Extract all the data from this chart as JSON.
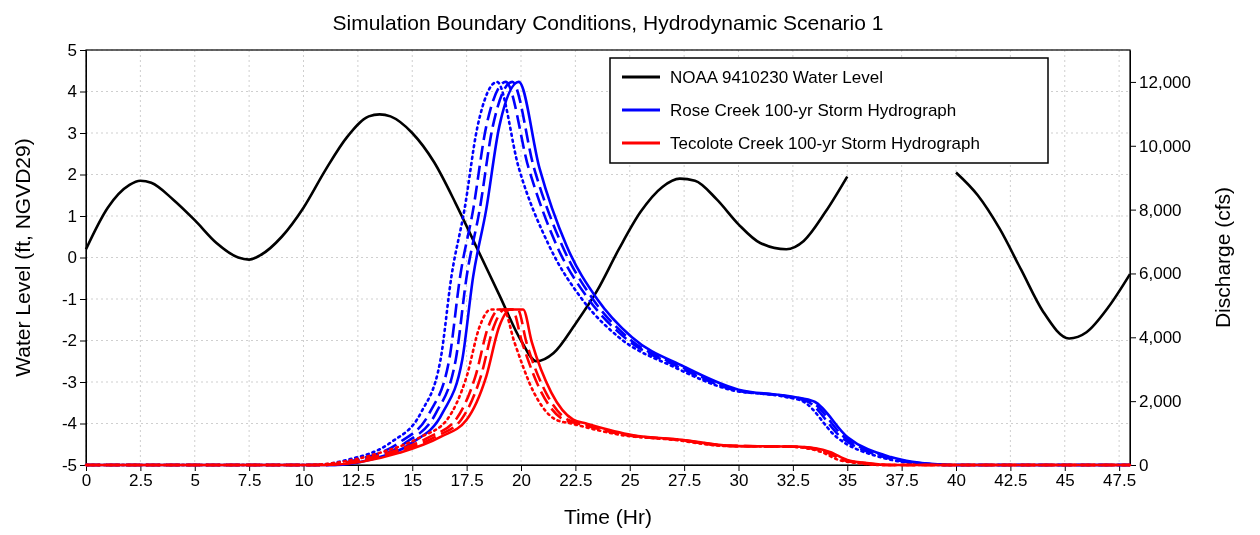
{
  "chart_data": {
    "type": "line",
    "title": "Simulation Boundary Conditions, Hydrodynamic Scenario 1",
    "xlabel": "Time (Hr)",
    "ylabel": "Water Level (ft, NGVD29)",
    "y2label": "Discharge (cfs)",
    "xlim": [
      0,
      48
    ],
    "xticks": [
      0,
      {
        "value": 2.5,
        "label": "2.5"
      },
      5,
      {
        "value": 7.5,
        "label": "7.5"
      },
      10,
      {
        "value": 12.5,
        "label": "12.5"
      },
      15,
      {
        "value": 17.5,
        "label": "17.5"
      },
      20,
      {
        "value": 22.5,
        "label": "22.5"
      },
      25,
      {
        "value": 27.5,
        "label": "27.5"
      },
      30,
      {
        "value": 32.5,
        "label": "32.5"
      },
      35,
      {
        "value": 37.5,
        "label": "37.5"
      },
      40,
      {
        "value": 42.5,
        "label": "42.5"
      },
      45,
      {
        "value": 47.5,
        "label": "47.5"
      }
    ],
    "ylim": [
      -5,
      5
    ],
    "yticks": [
      -5,
      -4,
      -3,
      -2,
      -1,
      0,
      1,
      2,
      3,
      4,
      5
    ],
    "y2lim": [
      0,
      13000
    ],
    "y2ticks": [
      0,
      {
        "value": 2000,
        "label": "2,000"
      },
      {
        "value": 4000,
        "label": "4,000"
      },
      {
        "value": 6000,
        "label": "6,000"
      },
      {
        "value": 8000,
        "label": "8,000"
      },
      {
        "value": 10000,
        "label": "10,000"
      },
      {
        "value": 12000,
        "label": "12,000"
      }
    ],
    "grid": true,
    "legend": "top right",
    "series": [
      {
        "name": "NOAA 9410230 Water Level",
        "color": "#000000",
        "line_style": "solid",
        "x": [
          0,
          1,
          2,
          2.5,
          3,
          4,
          5,
          6,
          7,
          7.5,
          8,
          9,
          10,
          11,
          12,
          13,
          13.5,
          14,
          15,
          16,
          17,
          18,
          19,
          20,
          20.7,
          21.5,
          22.5,
          23.5,
          24.5,
          25.5,
          26.5,
          27.3,
          28,
          29,
          30,
          31,
          32.2,
          33,
          34,
          35,
          37.5,
          40,
          41,
          42,
          43,
          44,
          45.2,
          46,
          47,
          48
        ],
        "values": [
          0.2,
          1.2,
          1.75,
          1.85,
          1.8,
          1.4,
          0.9,
          0.35,
          0.0,
          -0.05,
          0.05,
          0.5,
          1.2,
          2.1,
          2.9,
          3.4,
          3.45,
          3.4,
          3.0,
          2.3,
          1.3,
          0.2,
          -0.9,
          -2.0,
          -2.5,
          -2.3,
          -1.6,
          -0.8,
          0.2,
          1.1,
          1.7,
          1.9,
          1.85,
          1.4,
          0.8,
          0.35,
          0.2,
          0.4,
          1.1,
          1.95,
          null,
          2.05,
          1.5,
          0.7,
          -0.3,
          -1.3,
          -1.95,
          -1.8,
          -1.2,
          -0.4
        ]
      },
      {
        "name": "Rose Creek 100-yr Storm Hydrograph",
        "color": "#0000ff",
        "axis": "y2",
        "line_style": "solid",
        "x": [
          0,
          11.5,
          13,
          15,
          16.4,
          17.3,
          17.8,
          18.4,
          19.0,
          19.9,
          20.85,
          22.1,
          23.5,
          25.1,
          27.5,
          30,
          32.5,
          33.5,
          35,
          37,
          38,
          39,
          40,
          48
        ],
        "values": [
          0,
          0,
          160,
          700,
          1640,
          3300,
          5900,
          8000,
          10600,
          12000,
          9300,
          6860,
          5200,
          4000,
          3080,
          2360,
          2140,
          1980,
          880,
          250,
          100,
          30,
          0,
          0
        ]
      },
      {
        "color": "#0000ff",
        "axis": "y2",
        "line_style": "dashed",
        "x": [
          0,
          11.2,
          12.7,
          14.7,
          16.1,
          17.0,
          17.5,
          18.1,
          18.7,
          19.6,
          20.6,
          21.9,
          23.3,
          24.9,
          27.35,
          29.85,
          32.35,
          33.35,
          34.85,
          36.85,
          37.85,
          38.85,
          39.85,
          48
        ],
        "values": [
          0,
          0,
          160,
          700,
          1640,
          3300,
          5900,
          8000,
          10600,
          12000,
          9300,
          6860,
          5200,
          4000,
          3080,
          2360,
          2140,
          1980,
          880,
          250,
          100,
          30,
          0,
          0
        ]
      },
      {
        "color": "#0000ff",
        "axis": "y2",
        "line_style": "dashed",
        "x": [
          0,
          10.9,
          12.4,
          14.4,
          15.8,
          16.7,
          17.2,
          17.8,
          18.4,
          19.3,
          20.35,
          21.65,
          23.1,
          24.75,
          27.2,
          29.75,
          32.25,
          33.2,
          34.7,
          36.7,
          37.7,
          38.7,
          39.7,
          48
        ],
        "values": [
          0,
          0,
          160,
          700,
          1640,
          3300,
          5900,
          8000,
          10600,
          12000,
          9300,
          6860,
          5200,
          4000,
          3080,
          2360,
          2140,
          1980,
          880,
          250,
          100,
          30,
          0,
          0
        ]
      },
      {
        "color": "#0000ff",
        "axis": "y2",
        "line_style": "dotted",
        "x": [
          0,
          10.5,
          12,
          14,
          15.4,
          16.3,
          16.8,
          17.4,
          18.0,
          18.9,
          19.9,
          21.3,
          22.8,
          24.5,
          27.0,
          29.6,
          32.1,
          33.0,
          34.5,
          36.5,
          37.5,
          38.5,
          39.5,
          48
        ],
        "values": [
          0,
          0,
          160,
          700,
          1640,
          3300,
          5900,
          8000,
          10600,
          12000,
          9300,
          6860,
          5200,
          4000,
          3080,
          2360,
          2140,
          1980,
          880,
          250,
          100,
          30,
          0,
          0
        ]
      },
      {
        "name": "Tecolote Creek 100-yr Storm Hydrograph",
        "color": "#ff0000",
        "axis": "y2",
        "line_style": "solid",
        "x": [
          0,
          11,
          14.4,
          16.3,
          17.5,
          18.4,
          19.0,
          19.5,
          20.1,
          20.5,
          21.4,
          22.4,
          23.0,
          25.1,
          27.4,
          29.7,
          32.8,
          34.2,
          35.0,
          35.9,
          37,
          48
        ],
        "values": [
          0,
          0,
          380,
          880,
          1420,
          2770,
          4340,
          4870,
          4870,
          3840,
          2260,
          1420,
          1300,
          940,
          790,
          600,
          570,
          410,
          160,
          60,
          0,
          0
        ]
      },
      {
        "color": "#ff0000",
        "axis": "y2",
        "line_style": "dashed",
        "x": [
          0,
          10.75,
          14.15,
          16.05,
          17.25,
          18.15,
          18.75,
          19.25,
          19.85,
          20.25,
          21.15,
          22.15,
          22.8,
          24.95,
          27.3,
          29.6,
          32.7,
          34.1,
          34.9,
          35.8,
          36.9,
          48
        ],
        "values": [
          0,
          0,
          380,
          880,
          1420,
          2770,
          4340,
          4870,
          4870,
          3840,
          2260,
          1420,
          1300,
          940,
          790,
          600,
          570,
          410,
          160,
          60,
          0,
          0
        ]
      },
      {
        "color": "#ff0000",
        "axis": "y2",
        "line_style": "dashed",
        "x": [
          0,
          10.5,
          13.9,
          15.8,
          17.0,
          17.9,
          18.5,
          19.0,
          19.6,
          20.05,
          20.95,
          21.95,
          22.6,
          24.8,
          27.15,
          29.5,
          32.6,
          34.0,
          34.8,
          35.7,
          36.8,
          48
        ],
        "values": [
          0,
          0,
          380,
          880,
          1420,
          2770,
          4340,
          4870,
          4870,
          3840,
          2260,
          1420,
          1300,
          940,
          790,
          600,
          570,
          410,
          160,
          60,
          0,
          0
        ]
      },
      {
        "color": "#ff0000",
        "axis": "y2",
        "line_style": "dotted",
        "x": [
          0,
          10.1,
          13.5,
          15.4,
          16.6,
          17.5,
          18.1,
          18.6,
          19.2,
          19.7,
          20.6,
          21.6,
          22.3,
          24.6,
          27.0,
          29.3,
          32.4,
          33.8,
          34.6,
          35.5,
          36.6,
          48
        ],
        "values": [
          0,
          0,
          380,
          880,
          1420,
          2770,
          4340,
          4870,
          4870,
          3840,
          2260,
          1420,
          1300,
          940,
          790,
          600,
          570,
          410,
          160,
          60,
          0,
          0
        ]
      }
    ]
  }
}
